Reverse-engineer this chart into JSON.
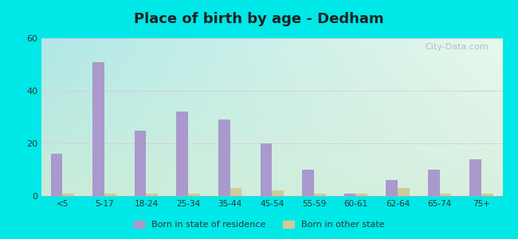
{
  "title": "Place of birth by age - Dedham",
  "categories": [
    "<5",
    "5-17",
    "18-24",
    "25-34",
    "35-44",
    "45-54",
    "55-59",
    "60-61",
    "62-64",
    "65-74",
    "75+"
  ],
  "born_in_state": [
    16,
    51,
    25,
    32,
    29,
    20,
    10,
    1,
    6,
    10,
    14
  ],
  "born_other_state": [
    1,
    1,
    1,
    1,
    3,
    2,
    1,
    1,
    3,
    1,
    1
  ],
  "bar_color_state": "#aa99cc",
  "bar_color_other": "#cccc99",
  "background_outer": "#00e8e8",
  "background_inner_topleft": "#b0e8e8",
  "background_inner_topright": "#e0f0e8",
  "background_inner_bottom": "#d0ecd8",
  "ylim": [
    0,
    60
  ],
  "yticks": [
    0,
    20,
    40,
    60
  ],
  "title_fontsize": 13,
  "legend_label_state": "Born in state of residence",
  "legend_label_other": "Born in other state",
  "watermark": "City-Data.com"
}
